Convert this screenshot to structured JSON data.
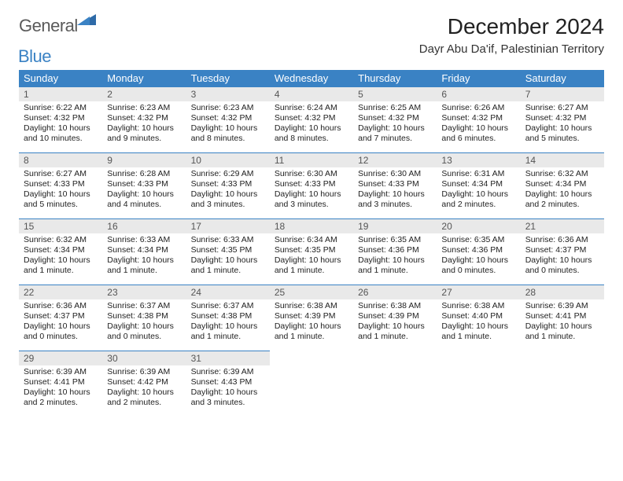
{
  "colors": {
    "brand_blue": "#3a82c4",
    "header_bg": "#3a82c4",
    "header_text": "#ffffff",
    "daynum_bg": "#e9e9e9",
    "daynum_text": "#555555",
    "body_text": "#222222",
    "logo_gray": "#5a5a5a"
  },
  "header": {
    "logo_part1": "General",
    "logo_part2": "Blue",
    "month_title": "December 2024",
    "location": "Dayr Abu Da'if, Palestinian Territory"
  },
  "weekdays": [
    "Sunday",
    "Monday",
    "Tuesday",
    "Wednesday",
    "Thursday",
    "Friday",
    "Saturday"
  ],
  "days": [
    {
      "n": "1",
      "sr": "6:22 AM",
      "ss": "4:32 PM",
      "dl": "10 hours and 10 minutes."
    },
    {
      "n": "2",
      "sr": "6:23 AM",
      "ss": "4:32 PM",
      "dl": "10 hours and 9 minutes."
    },
    {
      "n": "3",
      "sr": "6:23 AM",
      "ss": "4:32 PM",
      "dl": "10 hours and 8 minutes."
    },
    {
      "n": "4",
      "sr": "6:24 AM",
      "ss": "4:32 PM",
      "dl": "10 hours and 8 minutes."
    },
    {
      "n": "5",
      "sr": "6:25 AM",
      "ss": "4:32 PM",
      "dl": "10 hours and 7 minutes."
    },
    {
      "n": "6",
      "sr": "6:26 AM",
      "ss": "4:32 PM",
      "dl": "10 hours and 6 minutes."
    },
    {
      "n": "7",
      "sr": "6:27 AM",
      "ss": "4:32 PM",
      "dl": "10 hours and 5 minutes."
    },
    {
      "n": "8",
      "sr": "6:27 AM",
      "ss": "4:33 PM",
      "dl": "10 hours and 5 minutes."
    },
    {
      "n": "9",
      "sr": "6:28 AM",
      "ss": "4:33 PM",
      "dl": "10 hours and 4 minutes."
    },
    {
      "n": "10",
      "sr": "6:29 AM",
      "ss": "4:33 PM",
      "dl": "10 hours and 3 minutes."
    },
    {
      "n": "11",
      "sr": "6:30 AM",
      "ss": "4:33 PM",
      "dl": "10 hours and 3 minutes."
    },
    {
      "n": "12",
      "sr": "6:30 AM",
      "ss": "4:33 PM",
      "dl": "10 hours and 3 minutes."
    },
    {
      "n": "13",
      "sr": "6:31 AM",
      "ss": "4:34 PM",
      "dl": "10 hours and 2 minutes."
    },
    {
      "n": "14",
      "sr": "6:32 AM",
      "ss": "4:34 PM",
      "dl": "10 hours and 2 minutes."
    },
    {
      "n": "15",
      "sr": "6:32 AM",
      "ss": "4:34 PM",
      "dl": "10 hours and 1 minute."
    },
    {
      "n": "16",
      "sr": "6:33 AM",
      "ss": "4:34 PM",
      "dl": "10 hours and 1 minute."
    },
    {
      "n": "17",
      "sr": "6:33 AM",
      "ss": "4:35 PM",
      "dl": "10 hours and 1 minute."
    },
    {
      "n": "18",
      "sr": "6:34 AM",
      "ss": "4:35 PM",
      "dl": "10 hours and 1 minute."
    },
    {
      "n": "19",
      "sr": "6:35 AM",
      "ss": "4:36 PM",
      "dl": "10 hours and 1 minute."
    },
    {
      "n": "20",
      "sr": "6:35 AM",
      "ss": "4:36 PM",
      "dl": "10 hours and 0 minutes."
    },
    {
      "n": "21",
      "sr": "6:36 AM",
      "ss": "4:37 PM",
      "dl": "10 hours and 0 minutes."
    },
    {
      "n": "22",
      "sr": "6:36 AM",
      "ss": "4:37 PM",
      "dl": "10 hours and 0 minutes."
    },
    {
      "n": "23",
      "sr": "6:37 AM",
      "ss": "4:38 PM",
      "dl": "10 hours and 0 minutes."
    },
    {
      "n": "24",
      "sr": "6:37 AM",
      "ss": "4:38 PM",
      "dl": "10 hours and 1 minute."
    },
    {
      "n": "25",
      "sr": "6:38 AM",
      "ss": "4:39 PM",
      "dl": "10 hours and 1 minute."
    },
    {
      "n": "26",
      "sr": "6:38 AM",
      "ss": "4:39 PM",
      "dl": "10 hours and 1 minute."
    },
    {
      "n": "27",
      "sr": "6:38 AM",
      "ss": "4:40 PM",
      "dl": "10 hours and 1 minute."
    },
    {
      "n": "28",
      "sr": "6:39 AM",
      "ss": "4:41 PM",
      "dl": "10 hours and 1 minute."
    },
    {
      "n": "29",
      "sr": "6:39 AM",
      "ss": "4:41 PM",
      "dl": "10 hours and 2 minutes."
    },
    {
      "n": "30",
      "sr": "6:39 AM",
      "ss": "4:42 PM",
      "dl": "10 hours and 2 minutes."
    },
    {
      "n": "31",
      "sr": "6:39 AM",
      "ss": "4:43 PM",
      "dl": "10 hours and 3 minutes."
    }
  ],
  "labels": {
    "sunrise": "Sunrise: ",
    "sunset": "Sunset: ",
    "daylight": "Daylight: "
  },
  "layout": {
    "start_weekday": 0,
    "columns": 7,
    "rows": 5
  }
}
